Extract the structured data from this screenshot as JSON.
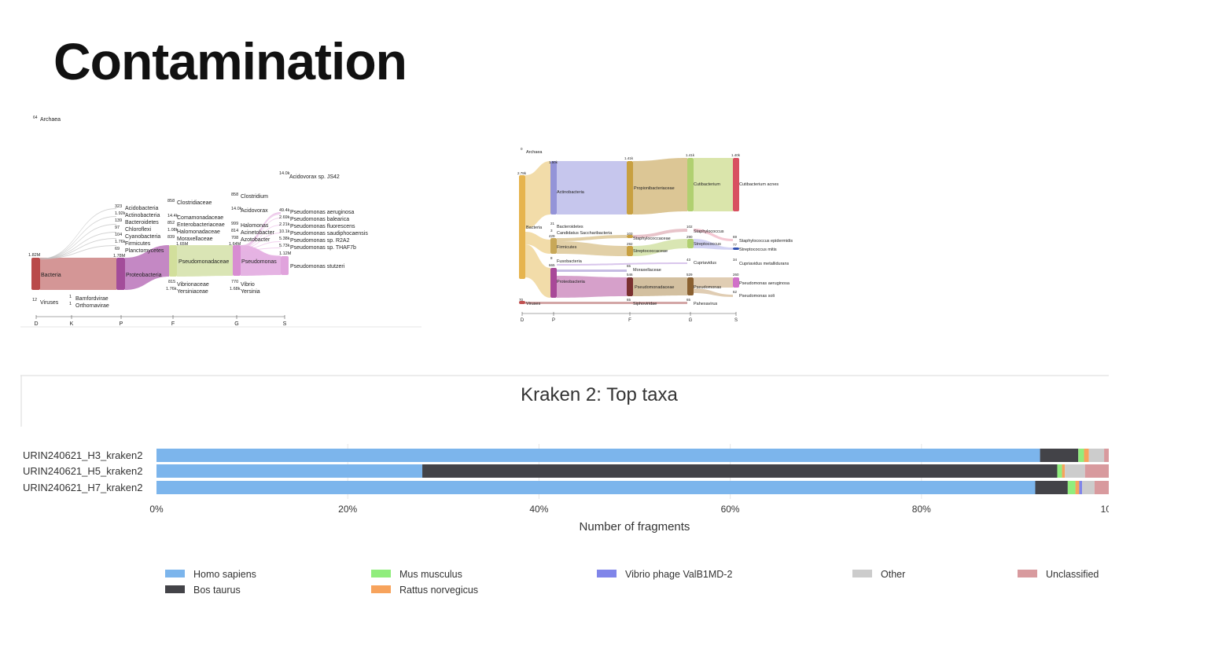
{
  "slide": {
    "title": "Contamination"
  },
  "chart_data": [
    {
      "type": "sankey",
      "axis_ranks": [
        "D",
        "K",
        "P",
        "F",
        "G",
        "S"
      ],
      "nodes": [
        {
          "label": "Archaea",
          "count": "64",
          "rank": "D"
        },
        {
          "label": "Bacteria",
          "count": "1.82M",
          "rank": "D"
        },
        {
          "label": "Viruses",
          "count": "12",
          "rank": "D"
        },
        {
          "label": "Bamfordvirae",
          "count": "1",
          "rank": "K"
        },
        {
          "label": "Orthornavirae",
          "count": "1",
          "rank": "K"
        },
        {
          "label": "Acidobacteria",
          "count": "323",
          "rank": "P"
        },
        {
          "label": "Actinobacteria",
          "count": "1.92k",
          "rank": "P"
        },
        {
          "label": "Bacteroidetes",
          "count": "139",
          "rank": "P"
        },
        {
          "label": "Chloroflexi",
          "count": "97",
          "rank": "P"
        },
        {
          "label": "Cyanobacteria",
          "count": "104",
          "rank": "P"
        },
        {
          "label": "Firmicutes",
          "count": "1.76k",
          "rank": "P"
        },
        {
          "label": "Planctomycetes",
          "count": "69",
          "rank": "P"
        },
        {
          "label": "Proteobacteria",
          "count": "1.78M",
          "rank": "P"
        },
        {
          "label": "Clostridiaceae",
          "count": "858",
          "rank": "F"
        },
        {
          "label": "Comamonadaceae",
          "count": "14.4k",
          "rank": "F"
        },
        {
          "label": "Enterobacteriaceae",
          "count": "852",
          "rank": "F"
        },
        {
          "label": "Halomonadaceae",
          "count": "1.08k",
          "rank": "F"
        },
        {
          "label": "Moraxellaceae",
          "count": "839",
          "rank": "F"
        },
        {
          "label": "Pseudomonadaceae",
          "count": "1.65M",
          "rank": "F"
        },
        {
          "label": "Vibrionaceae",
          "count": "815",
          "rank": "F"
        },
        {
          "label": "Yersiniaceae",
          "count": "1.76k",
          "rank": "F"
        },
        {
          "label": "Clostridium",
          "count": "858",
          "rank": "G"
        },
        {
          "label": "Acidovorax",
          "count": "14.0k",
          "rank": "G"
        },
        {
          "label": "Halomonas",
          "count": "999",
          "rank": "G"
        },
        {
          "label": "Acinetobacter",
          "count": "814",
          "rank": "G"
        },
        {
          "label": "Azotobacter",
          "count": "708",
          "rank": "G"
        },
        {
          "label": "Pseudomonas",
          "count": "1.64M",
          "rank": "G"
        },
        {
          "label": "Vibrio",
          "count": "770",
          "rank": "G"
        },
        {
          "label": "Yersinia",
          "count": "1.68k",
          "rank": "G"
        },
        {
          "label": "Acidovorax sp. JS42",
          "count": "14.0k",
          "rank": "S"
        },
        {
          "label": "Pseudomonas aeruginosa",
          "count": "49.4k",
          "rank": "S"
        },
        {
          "label": "Pseudomonas balearica",
          "count": "2.69k",
          "rank": "S"
        },
        {
          "label": "Pseudomonas fluorescens",
          "count": "2.21k",
          "rank": "S"
        },
        {
          "label": "Pseudomonas saudiphocaensis",
          "count": "10.1k",
          "rank": "S"
        },
        {
          "label": "Pseudomonas sp. R2A2",
          "count": "5.38k",
          "rank": "S"
        },
        {
          "label": "Pseudomonas sp. THAF7b",
          "count": "5.73k",
          "rank": "S"
        },
        {
          "label": "Pseudomonas stutzeri",
          "count": "1.12M",
          "rank": "S"
        }
      ]
    },
    {
      "type": "sankey",
      "axis_ranks": [
        "D",
        "P",
        "F",
        "G",
        "S"
      ],
      "nodes": [
        {
          "label": "Archaea",
          "count": "0",
          "rank": "D"
        },
        {
          "label": "Bacteria",
          "count": "2.78k",
          "rank": "D"
        },
        {
          "label": "Viruses",
          "count": "70",
          "rank": "D"
        },
        {
          "label": "Actinobacteria",
          "count": "1.50k",
          "rank": "P"
        },
        {
          "label": "Bacteroidetes",
          "count": "21",
          "rank": "P"
        },
        {
          "label": "Candidatus Saccharibacteria",
          "count": "3",
          "rank": "P"
        },
        {
          "label": "Firmicutes",
          "count": "429",
          "rank": "P"
        },
        {
          "label": "Fusobacteria",
          "count": "8",
          "rank": "P"
        },
        {
          "label": "Proteobacteria",
          "count": "665",
          "rank": "P"
        },
        {
          "label": "Propionibacteriaceae",
          "count": "1.41k",
          "rank": "F"
        },
        {
          "label": "Staphylococcaceae",
          "count": "103",
          "rank": "F"
        },
        {
          "label": "Streptococcaceae",
          "count": "292",
          "rank": "F"
        },
        {
          "label": "Moraxellaceae",
          "count": "65",
          "rank": "F"
        },
        {
          "label": "Pseudomonadaceae",
          "count": "546",
          "rank": "F"
        },
        {
          "label": "Siphoviridae",
          "count": "65",
          "rank": "F"
        },
        {
          "label": "Cutibacterium",
          "count": "1.41k",
          "rank": "G"
        },
        {
          "label": "Staphylococcus",
          "count": "102",
          "rank": "G"
        },
        {
          "label": "Streptococcus",
          "count": "290",
          "rank": "G"
        },
        {
          "label": "Cupriavidus",
          "count": "43",
          "rank": "G"
        },
        {
          "label": "Pseudomonas",
          "count": "529",
          "rank": "G"
        },
        {
          "label": "Pahexavirus",
          "count": "65",
          "rank": "G"
        },
        {
          "label": "Cutibacterium acnes",
          "count": "1.40k",
          "rank": "S"
        },
        {
          "label": "Staphylococcus epidermidis",
          "count": "69",
          "rank": "S"
        },
        {
          "label": "Streptococcus mitis",
          "count": "77",
          "rank": "S"
        },
        {
          "label": "Cupriavidus metallidurans",
          "count": "34",
          "rank": "S"
        },
        {
          "label": "Pseudomonas aeruginosa",
          "count": "260",
          "rank": "S"
        },
        {
          "label": "Pseudomonas soli",
          "count": "62",
          "rank": "S"
        }
      ]
    },
    {
      "type": "bar",
      "orientation": "horizontal",
      "stacked": true,
      "title": "Kraken 2: Top taxa",
      "xlabel": "Number of fragments",
      "ylabel": "",
      "xlim": [
        0,
        100
      ],
      "x_unit": "%",
      "x_ticks": [
        "0%",
        "20%",
        "40%",
        "60%",
        "80%",
        "100%"
      ],
      "legend_position": "bottom",
      "categories": [
        "URIN240621_H3_kraken2",
        "URIN240621_H5_kraken2",
        "URIN240621_H7_kraken2"
      ],
      "series": [
        {
          "name": "Homo sapiens",
          "color": "#7cb5ec",
          "values": [
            92.4,
            27.8,
            91.9
          ]
        },
        {
          "name": "Bos taurus",
          "color": "#434348",
          "values": [
            4.0,
            66.4,
            3.4
          ]
        },
        {
          "name": "Mus musculus",
          "color": "#90ed7d",
          "values": [
            0.6,
            0.5,
            0.8
          ]
        },
        {
          "name": "Rattus norvegicus",
          "color": "#f7a35c",
          "values": [
            0.5,
            0.3,
            0.4
          ]
        },
        {
          "name": "Vibrio phage ValB1MD-2",
          "color": "#8085e9",
          "values": [
            0.0,
            0.0,
            0.3
          ]
        },
        {
          "name": "Other",
          "color": "#cccccc",
          "values": [
            1.6,
            2.1,
            1.3
          ]
        },
        {
          "name": "Unclassified",
          "color": "#d89a9e",
          "values": [
            0.9,
            2.9,
            1.9
          ]
        }
      ]
    }
  ]
}
